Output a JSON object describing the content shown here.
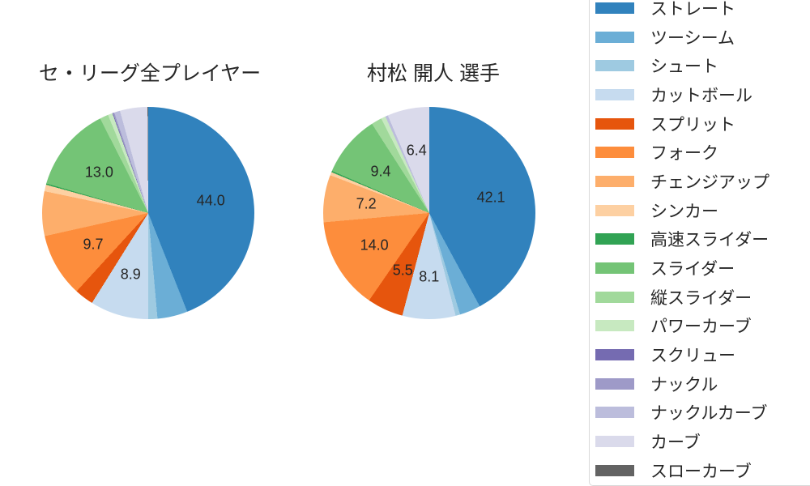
{
  "page": {
    "background": "#ffffff"
  },
  "legend": {
    "position": "right",
    "border_color": "#d9d9d9",
    "items": [
      {
        "label": "ストレート",
        "color": "#3182bd"
      },
      {
        "label": "ツーシーム",
        "color": "#6baed6"
      },
      {
        "label": "シュート",
        "color": "#9ecae1"
      },
      {
        "label": "カットボール",
        "color": "#c6dbef"
      },
      {
        "label": "スプリット",
        "color": "#e6550d"
      },
      {
        "label": "フォーク",
        "color": "#fd8d3c"
      },
      {
        "label": "チェンジアップ",
        "color": "#fdae6b"
      },
      {
        "label": "シンカー",
        "color": "#fdd0a2"
      },
      {
        "label": "高速スライダー",
        "color": "#31a354"
      },
      {
        "label": "スライダー",
        "color": "#74c476"
      },
      {
        "label": "縦スライダー",
        "color": "#a1d99b"
      },
      {
        "label": "パワーカーブ",
        "color": "#c7e9c0"
      },
      {
        "label": "スクリュー",
        "color": "#756bb1"
      },
      {
        "label": "ナックル",
        "color": "#9e9ac8"
      },
      {
        "label": "ナックルカーブ",
        "color": "#bcbddc"
      },
      {
        "label": "カーブ",
        "color": "#dadaeb"
      },
      {
        "label": "スローカーブ",
        "color": "#636363"
      }
    ]
  },
  "chart_data": [
    {
      "type": "pie",
      "title": "セ・リーグ全プレイヤー",
      "value_format": "percent",
      "start_angle_deg": 0,
      "direction": "clockwise",
      "slices": [
        {
          "label": "ストレート",
          "value": 44.0,
          "data_label": "44.0"
        },
        {
          "label": "ツーシーム",
          "value": 4.6,
          "data_label": ""
        },
        {
          "label": "シュート",
          "value": 1.4,
          "data_label": ""
        },
        {
          "label": "カットボール",
          "value": 8.9,
          "data_label": "8.9"
        },
        {
          "label": "スプリット",
          "value": 2.9,
          "data_label": ""
        },
        {
          "label": "フォーク",
          "value": 9.7,
          "data_label": "9.7"
        },
        {
          "label": "チェンジアップ",
          "value": 6.8,
          "data_label": ""
        },
        {
          "label": "シンカー",
          "value": 1.0,
          "data_label": ""
        },
        {
          "label": "高速スライダー",
          "value": 0.2,
          "data_label": ""
        },
        {
          "label": "スライダー",
          "value": 13.0,
          "data_label": "13.0"
        },
        {
          "label": "縦スライダー",
          "value": 1.3,
          "data_label": ""
        },
        {
          "label": "パワーカーブ",
          "value": 0.7,
          "data_label": ""
        },
        {
          "label": "スクリュー",
          "value": 0.1,
          "data_label": ""
        },
        {
          "label": "ナックル",
          "value": 0.2,
          "data_label": ""
        },
        {
          "label": "ナックルカーブ",
          "value": 0.9,
          "data_label": ""
        },
        {
          "label": "カーブ",
          "value": 4.2,
          "data_label": ""
        },
        {
          "label": "スローカーブ",
          "value": 0.1,
          "data_label": ""
        }
      ]
    },
    {
      "type": "pie",
      "title": "村松 開人 選手",
      "value_format": "percent",
      "start_angle_deg": 0,
      "direction": "clockwise",
      "slices": [
        {
          "label": "ストレート",
          "value": 42.1,
          "data_label": "42.1"
        },
        {
          "label": "ツーシーム",
          "value": 3.2,
          "data_label": ""
        },
        {
          "label": "シュート",
          "value": 0.7,
          "data_label": ""
        },
        {
          "label": "カットボール",
          "value": 8.1,
          "data_label": "8.1"
        },
        {
          "label": "スプリット",
          "value": 5.5,
          "data_label": "5.5"
        },
        {
          "label": "フォーク",
          "value": 14.0,
          "data_label": "14.0"
        },
        {
          "label": "チェンジアップ",
          "value": 7.2,
          "data_label": "7.2"
        },
        {
          "label": "シンカー",
          "value": 0.5,
          "data_label": ""
        },
        {
          "label": "高速スライダー",
          "value": 0.2,
          "data_label": ""
        },
        {
          "label": "スライダー",
          "value": 9.4,
          "data_label": "9.4"
        },
        {
          "label": "縦スライダー",
          "value": 1.6,
          "data_label": ""
        },
        {
          "label": "パワーカーブ",
          "value": 0.7,
          "data_label": ""
        },
        {
          "label": "スクリュー",
          "value": 0.0,
          "data_label": ""
        },
        {
          "label": "ナックル",
          "value": 0.0,
          "data_label": ""
        },
        {
          "label": "ナックルカーブ",
          "value": 0.4,
          "data_label": ""
        },
        {
          "label": "カーブ",
          "value": 6.4,
          "data_label": "6.4"
        },
        {
          "label": "スローカーブ",
          "value": 0.0,
          "data_label": ""
        }
      ]
    }
  ]
}
